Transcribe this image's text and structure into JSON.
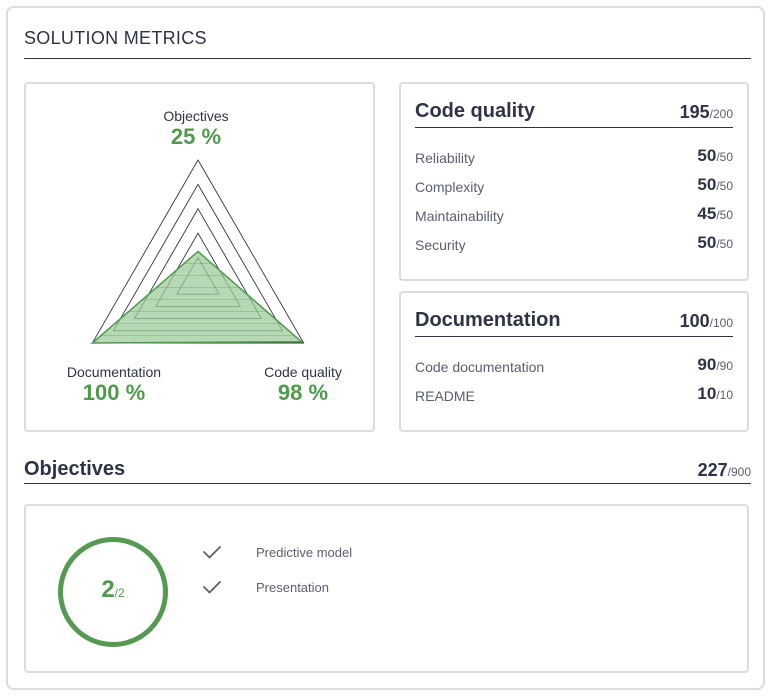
{
  "page": {
    "title": "SOLUTION METRICS"
  },
  "radar": {
    "axes": [
      {
        "label": "Objectives",
        "percent_text": "25 %",
        "value": 0.25
      },
      {
        "label": "Code quality",
        "percent_text": "98 %",
        "value": 0.98
      },
      {
        "label": "Documentation",
        "percent_text": "100 %",
        "value": 1.0
      }
    ],
    "colors": {
      "fill": "#9fcb9c",
      "stroke": "#4f9a4b",
      "grid": "#2f3347"
    }
  },
  "code_quality": {
    "title": "Code quality",
    "score": "195",
    "max": "/200",
    "items": [
      {
        "label": "Reliability",
        "score": "50",
        "max": "/50"
      },
      {
        "label": "Complexity",
        "score": "50",
        "max": "/50"
      },
      {
        "label": "Maintainability",
        "score": "45",
        "max": "/50"
      },
      {
        "label": "Security",
        "score": "50",
        "max": "/50"
      }
    ]
  },
  "documentation": {
    "title": "Documentation",
    "score": "100",
    "max": "/100",
    "items": [
      {
        "label": "Code documentation",
        "score": "90",
        "max": "/90"
      },
      {
        "label": "README",
        "score": "10",
        "max": "/10"
      }
    ]
  },
  "objectives": {
    "title": "Objectives",
    "score": "227",
    "max": "/900",
    "completed": "2",
    "completed_max": "/2",
    "tasks": [
      {
        "label": "Predictive model",
        "icon": "check-icon",
        "done": true
      },
      {
        "label": "Presentation",
        "icon": "check-icon",
        "done": true
      }
    ]
  },
  "colors": {
    "accent": "#4f9a4b",
    "text": "#2f3347",
    "muted": "#5a5e70",
    "border": "#dcdcdc"
  }
}
